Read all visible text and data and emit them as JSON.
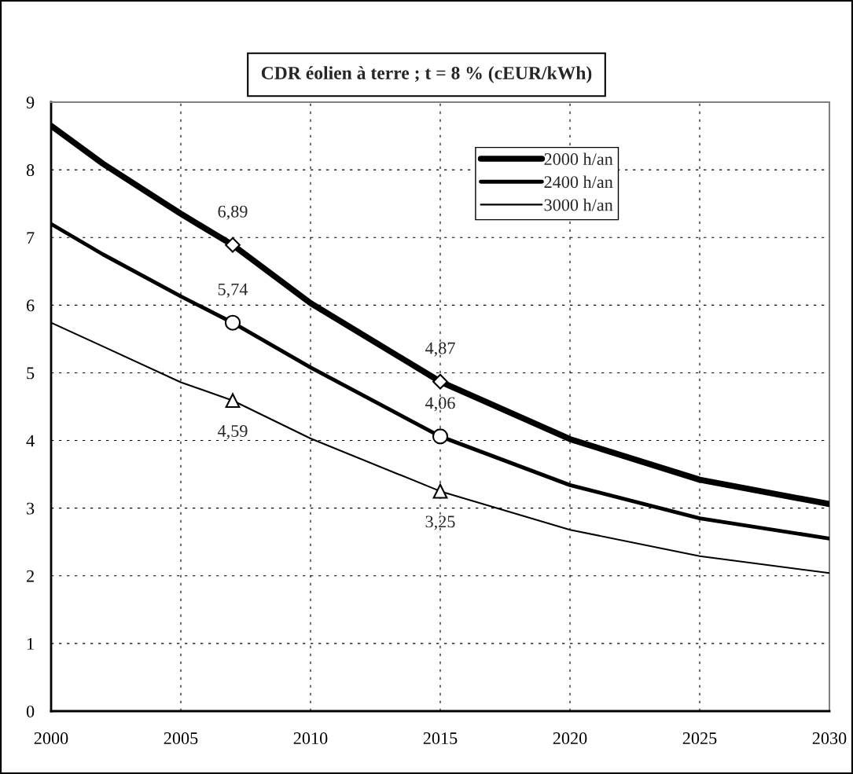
{
  "chart_data": {
    "type": "line",
    "title": "CDR éolien à terre ; t = 8 % (cEUR/kWh)",
    "x": [
      2000,
      2002,
      2005,
      2007,
      2010,
      2015,
      2020,
      2025,
      2030
    ],
    "series": [
      {
        "name": "2000 h/an",
        "color": "#000000",
        "values": [
          8.65,
          8.09,
          7.35,
          6.89,
          6.03,
          4.87,
          4.02,
          3.42,
          3.06
        ]
      },
      {
        "name": "2400 h/an",
        "color": "#000000",
        "values": [
          7.2,
          6.75,
          6.13,
          5.74,
          5.08,
          4.06,
          3.34,
          2.85,
          2.55
        ]
      },
      {
        "name": "3000 h/an",
        "color": "#000000",
        "values": [
          5.74,
          5.39,
          4.86,
          4.59,
          4.03,
          3.25,
          2.68,
          2.29,
          2.04
        ]
      },
      {
        "type": "scatter",
        "marker": "diamond",
        "color": "#000000",
        "values": [
          null,
          null,
          null,
          6.89,
          null,
          4.87,
          null,
          null,
          null
        ],
        "value_labels": [
          null,
          null,
          null,
          "6,89",
          null,
          "4,87",
          null,
          null,
          null
        ]
      },
      {
        "type": "scatter",
        "marker": "circle",
        "color": "#000000",
        "values": [
          null,
          null,
          null,
          5.74,
          null,
          4.06,
          null,
          null,
          null
        ],
        "value_labels": [
          null,
          null,
          null,
          "5,74",
          null,
          "4,06",
          null,
          null,
          null
        ]
      },
      {
        "type": "scatter",
        "marker": "triangle",
        "color": "#000000",
        "values": [
          null,
          null,
          null,
          4.59,
          null,
          3.25,
          null,
          null,
          null
        ],
        "value_labels": [
          null,
          null,
          null,
          "4,59",
          null,
          "3,25",
          null,
          null,
          null
        ]
      }
    ],
    "xlim": [
      2000,
      2030
    ],
    "xticks": [
      2000,
      2005,
      2010,
      2015,
      2020,
      2025,
      2030
    ],
    "ylim": [
      0,
      9
    ],
    "yticks": [
      0,
      1,
      2,
      3,
      4,
      5,
      6,
      7,
      8,
      9
    ],
    "grid": true,
    "legend": "top right",
    "line_style": "solid",
    "marker": "none"
  }
}
